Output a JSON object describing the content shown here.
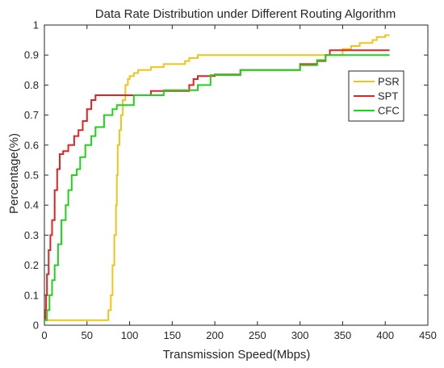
{
  "chart_data": {
    "type": "line",
    "title": "Data Rate Distribution under Different Routing Algorithm",
    "xlabel": "Transmission Speed(Mbps)",
    "ylabel": "Percentage(%)",
    "xlim": [
      0,
      450
    ],
    "ylim": [
      0,
      1
    ],
    "xticks": [
      0,
      50,
      100,
      150,
      200,
      250,
      300,
      350,
      400,
      450
    ],
    "yticks": [
      0,
      0.1,
      0.2,
      0.3,
      0.4,
      0.5,
      0.6,
      0.7,
      0.8,
      0.9,
      1
    ],
    "xtick_labels": [
      "0",
      "50",
      "100",
      "150",
      "200",
      "250",
      "300",
      "350",
      "400",
      "450"
    ],
    "ytick_labels": [
      "0",
      "0.1",
      "0.2",
      "0.3",
      "0.4",
      "0.5",
      "0.6",
      "0.7",
      "0.8",
      "0.9",
      "1"
    ],
    "grid": false,
    "legend_position": "top-right",
    "series": [
      {
        "name": "PSR",
        "color": "#f0c419",
        "points": [
          [
            0,
            0.017
          ],
          [
            72,
            0.017
          ],
          [
            75,
            0.05
          ],
          [
            78,
            0.1
          ],
          [
            80,
            0.2
          ],
          [
            82,
            0.3
          ],
          [
            84,
            0.4
          ],
          [
            85,
            0.5
          ],
          [
            86,
            0.6
          ],
          [
            88,
            0.65
          ],
          [
            90,
            0.7
          ],
          [
            92,
            0.75
          ],
          [
            95,
            0.8
          ],
          [
            98,
            0.82
          ],
          [
            100,
            0.83
          ],
          [
            105,
            0.84
          ],
          [
            110,
            0.85
          ],
          [
            125,
            0.86
          ],
          [
            140,
            0.87
          ],
          [
            165,
            0.88
          ],
          [
            170,
            0.89
          ],
          [
            180,
            0.9
          ],
          [
            340,
            0.9
          ],
          [
            350,
            0.92
          ],
          [
            360,
            0.93
          ],
          [
            370,
            0.94
          ],
          [
            385,
            0.95
          ],
          [
            390,
            0.96
          ],
          [
            400,
            0.966
          ],
          [
            405,
            0.966
          ]
        ]
      },
      {
        "name": "SPT",
        "color": "#e02424",
        "points": [
          [
            0,
            0.017
          ],
          [
            1,
            0.05
          ],
          [
            2,
            0.1
          ],
          [
            3,
            0.17
          ],
          [
            5,
            0.25
          ],
          [
            7,
            0.3
          ],
          [
            9,
            0.35
          ],
          [
            12,
            0.45
          ],
          [
            15,
            0.52
          ],
          [
            18,
            0.57
          ],
          [
            22,
            0.58
          ],
          [
            28,
            0.6
          ],
          [
            35,
            0.63
          ],
          [
            40,
            0.65
          ],
          [
            45,
            0.68
          ],
          [
            50,
            0.72
          ],
          [
            55,
            0.75
          ],
          [
            60,
            0.766
          ],
          [
            120,
            0.766
          ],
          [
            125,
            0.78
          ],
          [
            170,
            0.8
          ],
          [
            175,
            0.82
          ],
          [
            180,
            0.83
          ],
          [
            200,
            0.835
          ],
          [
            230,
            0.85
          ],
          [
            280,
            0.85
          ],
          [
            300,
            0.87
          ],
          [
            320,
            0.88
          ],
          [
            330,
            0.9
          ],
          [
            335,
            0.916
          ],
          [
            405,
            0.916
          ]
        ]
      },
      {
        "name": "CFC",
        "color": "#22d11e",
        "points": [
          [
            0,
            0.017
          ],
          [
            3,
            0.05
          ],
          [
            6,
            0.1
          ],
          [
            9,
            0.15
          ],
          [
            12,
            0.2
          ],
          [
            16,
            0.27
          ],
          [
            20,
            0.35
          ],
          [
            25,
            0.4
          ],
          [
            28,
            0.45
          ],
          [
            32,
            0.5
          ],
          [
            38,
            0.52
          ],
          [
            42,
            0.56
          ],
          [
            48,
            0.6
          ],
          [
            55,
            0.63
          ],
          [
            60,
            0.66
          ],
          [
            70,
            0.7
          ],
          [
            80,
            0.72
          ],
          [
            85,
            0.733
          ],
          [
            100,
            0.733
          ],
          [
            105,
            0.766
          ],
          [
            130,
            0.766
          ],
          [
            140,
            0.783
          ],
          [
            175,
            0.783
          ],
          [
            180,
            0.8
          ],
          [
            195,
            0.833
          ],
          [
            230,
            0.85
          ],
          [
            300,
            0.866
          ],
          [
            320,
            0.883
          ],
          [
            330,
            0.9
          ],
          [
            405,
            0.9
          ]
        ]
      }
    ]
  }
}
